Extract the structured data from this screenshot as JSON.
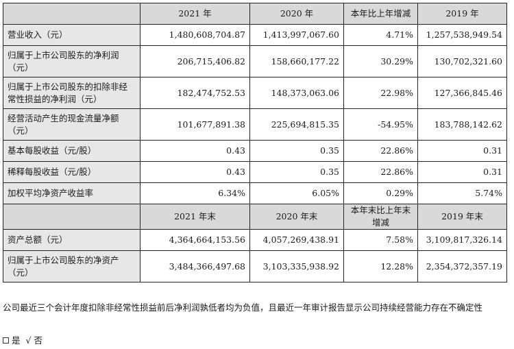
{
  "header1": [
    "",
    "2021 年",
    "2020 年",
    "本年比上年增减",
    "2019 年"
  ],
  "rows1": [
    {
      "label": "营业收入（元）",
      "v2021": "1,480,608,704.87",
      "v2020": "1,413,997,067.60",
      "change": "4.71%",
      "v2019": "1,257,538,949.54"
    },
    {
      "label": "归属于上市公司股东的净利润（元）",
      "v2021": "206,715,406.82",
      "v2020": "158,660,177.22",
      "change": "30.29%",
      "v2019": "130,702,321.60"
    },
    {
      "label": "归属于上市公司股东的扣除非经常性损益的净利润（元）",
      "v2021": "182,474,752.53",
      "v2020": "148,373,063.06",
      "change": "22.98%",
      "v2019": "127,366,845.46"
    },
    {
      "label": "经营活动产生的现金流量净额（元）",
      "v2021": "101,677,891.38",
      "v2020": "225,694,815.35",
      "change": "-54.95%",
      "v2019": "183,788,142.62"
    },
    {
      "label": "基本每股收益（元/股）",
      "v2021": "0.43",
      "v2020": "0.35",
      "change": "22.86%",
      "v2019": "0.31"
    },
    {
      "label": "稀释每股收益（元/股）",
      "v2021": "0.43",
      "v2020": "0.35",
      "change": "22.86%",
      "v2019": "0.31"
    },
    {
      "label": "加权平均净资产收益率",
      "v2021": "6.34%",
      "v2020": "6.05%",
      "change": "0.29%",
      "v2019": "5.74%"
    }
  ],
  "header2": [
    "",
    "2021 年末",
    "2020 年末",
    "本年末比上年末增减",
    "2019 年末"
  ],
  "rows2": [
    {
      "label": "资产总额（元）",
      "v2021": "4,364,664,153.56",
      "v2020": "4,057,269,438.91",
      "change": "7.58%",
      "v2019": "3,109,817,326.14"
    },
    {
      "label": "归属于上市公司股东的净资产（元）",
      "v2021": "3,484,366,497.68",
      "v2020": "3,103,335,938.92",
      "change": "12.28%",
      "v2019": "2,354,372,357.19"
    }
  ],
  "note": "公司最近三个会计年度扣除非经常性损益前后净利润孰低者均为负值，且最近一年审计报告显示公司持续经营能力存在不确定性",
  "choice": {
    "yes": "是",
    "check": "√",
    "no": "否"
  }
}
